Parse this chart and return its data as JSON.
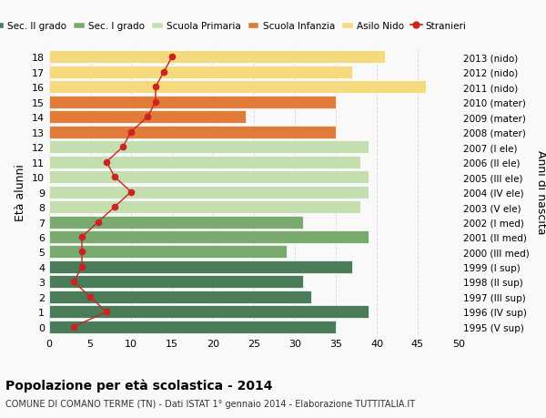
{
  "ages": [
    18,
    17,
    16,
    15,
    14,
    13,
    12,
    11,
    10,
    9,
    8,
    7,
    6,
    5,
    4,
    3,
    2,
    1,
    0
  ],
  "right_labels": [
    "1995 (V sup)",
    "1996 (IV sup)",
    "1997 (III sup)",
    "1998 (II sup)",
    "1999 (I sup)",
    "2000 (III med)",
    "2001 (II med)",
    "2002 (I med)",
    "2003 (V ele)",
    "2004 (IV ele)",
    "2005 (III ele)",
    "2006 (II ele)",
    "2007 (I ele)",
    "2008 (mater)",
    "2009 (mater)",
    "2010 (mater)",
    "2011 (nido)",
    "2012 (nido)",
    "2013 (nido)"
  ],
  "bar_values": [
    35,
    39,
    32,
    31,
    37,
    29,
    39,
    31,
    38,
    39,
    39,
    38,
    39,
    35,
    24,
    35,
    46,
    37,
    41
  ],
  "bar_colors": [
    "#4a7c59",
    "#4a7c59",
    "#4a7c59",
    "#4a7c59",
    "#4a7c59",
    "#7aab6e",
    "#7aab6e",
    "#7aab6e",
    "#c5deb0",
    "#c5deb0",
    "#c5deb0",
    "#c5deb0",
    "#c5deb0",
    "#e07b39",
    "#e07b39",
    "#e07b39",
    "#f5d97e",
    "#f5d97e",
    "#f5d97e"
  ],
  "stranieri_values": [
    3,
    7,
    5,
    3,
    4,
    4,
    4,
    6,
    8,
    10,
    8,
    7,
    9,
    10,
    12,
    13,
    13,
    14,
    15
  ],
  "legend_labels": [
    "Sec. II grado",
    "Sec. I grado",
    "Scuola Primaria",
    "Scuola Infanzia",
    "Asilo Nido",
    "Stranieri"
  ],
  "legend_colors": [
    "#4a7c59",
    "#7aab6e",
    "#c5deb0",
    "#e07b39",
    "#f5d97e",
    "#cc2222"
  ],
  "ylabel_left": "Età alunni",
  "ylabel_right": "Anni di nascita",
  "title": "Popolazione per età scolastica - 2014",
  "subtitle": "COMUNE DI COMANO TERME (TN) - Dati ISTAT 1° gennaio 2014 - Elaborazione TUTTITALIA.IT",
  "xlim": [
    0,
    50
  ],
  "xticks": [
    0,
    5,
    10,
    15,
    20,
    25,
    30,
    35,
    40,
    45,
    50
  ],
  "background_color": "#f9f9f9",
  "grid_color": "#dddddd"
}
